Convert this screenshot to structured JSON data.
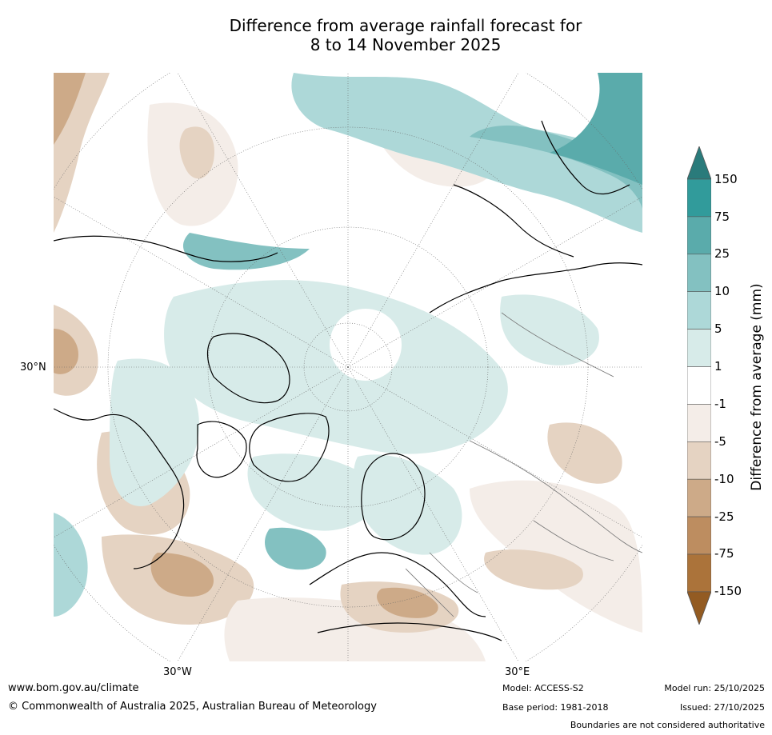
{
  "title": {
    "line1": "Difference from average rainfall forecast for",
    "line2": "8 to 14 November 2025"
  },
  "map": {
    "projection": "north-polar-stereographic",
    "lat_label": "30°N",
    "lon_labels": [
      "30°W",
      "30°E"
    ]
  },
  "colorbar": {
    "label": "Difference from average (mm)",
    "ticks": [
      "150",
      "75",
      "25",
      "10",
      "5",
      "1",
      "-1",
      "-5",
      "-10",
      "-25",
      "-75",
      "-150"
    ],
    "colors": [
      "#2a7b7b",
      "#319b9b",
      "#5aabab",
      "#83c1c1",
      "#add8d8",
      "#d7ebe9",
      "#ffffff",
      "#f4ede8",
      "#e5d3c2",
      "#cdaa88",
      "#bd8d60",
      "#ab733a",
      "#935b22"
    ]
  },
  "footer": {
    "url": "www.bom.gov.au/climate",
    "copyright": "© Commonwealth of Australia 2025, Australian Bureau of Meteorology",
    "model": "Model: ACCESS-S2",
    "base_period": "Base period: 1981-2018",
    "model_run": "Model run: 25/10/2025",
    "issued": "Issued: 27/10/2025",
    "disclaimer": "Boundaries are not considered authoritative"
  }
}
